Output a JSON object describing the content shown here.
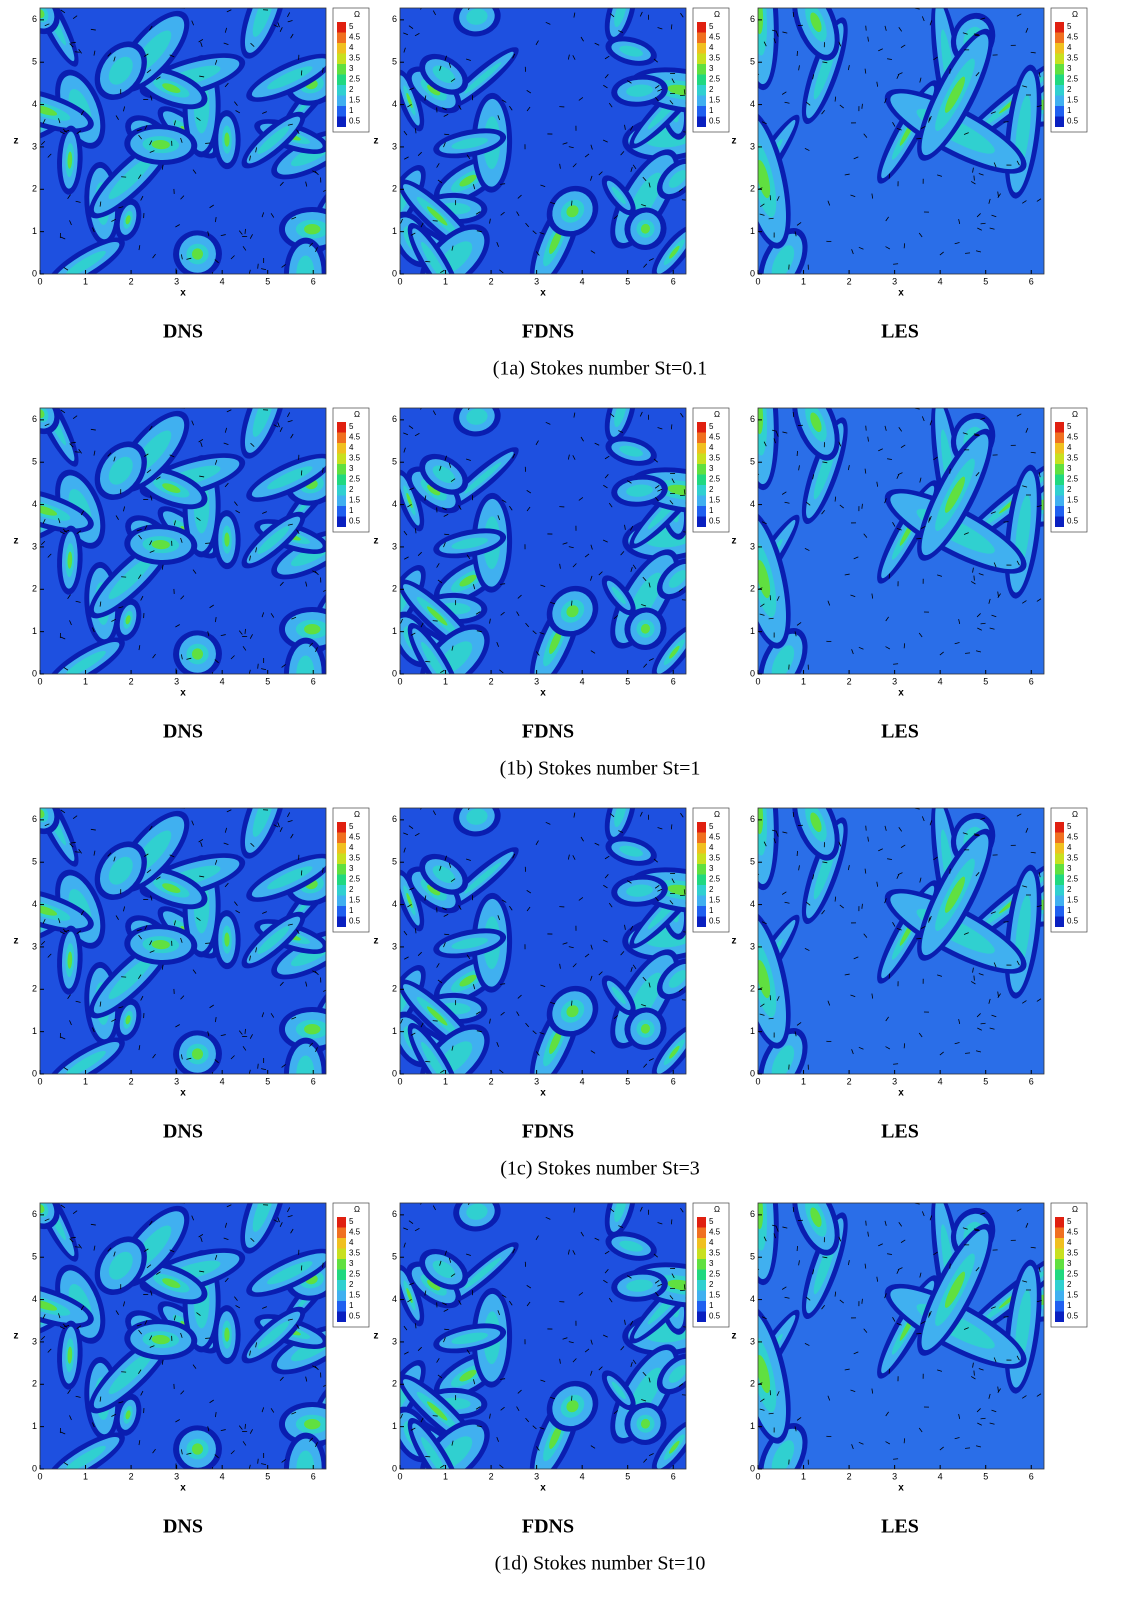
{
  "figure": {
    "axes": {
      "xlabel": "x",
      "ylabel": "z",
      "ticks": [
        0,
        1,
        2,
        3,
        4,
        5,
        6
      ],
      "lim": [
        0,
        6.28
      ]
    },
    "colorbar": {
      "title": "Ω",
      "levels": [
        5,
        4.5,
        4,
        3.5,
        3,
        2.5,
        2,
        1.5,
        1,
        0.5
      ]
    },
    "rows": [
      {
        "caption": "(1a) Stokes number St=0.1",
        "panels": [
          "DNS",
          "FDNS",
          "LES"
        ]
      },
      {
        "caption": "(1b) Stokes number St=1",
        "panels": [
          "DNS",
          "FDNS",
          "LES"
        ]
      },
      {
        "caption": "(1c) Stokes number St=3",
        "panels": [
          "DNS",
          "FDNS",
          "LES"
        ]
      },
      {
        "caption": "(1d) Stokes number St=10",
        "panels": [
          "DNS",
          "FDNS",
          "LES"
        ]
      }
    ]
  }
}
